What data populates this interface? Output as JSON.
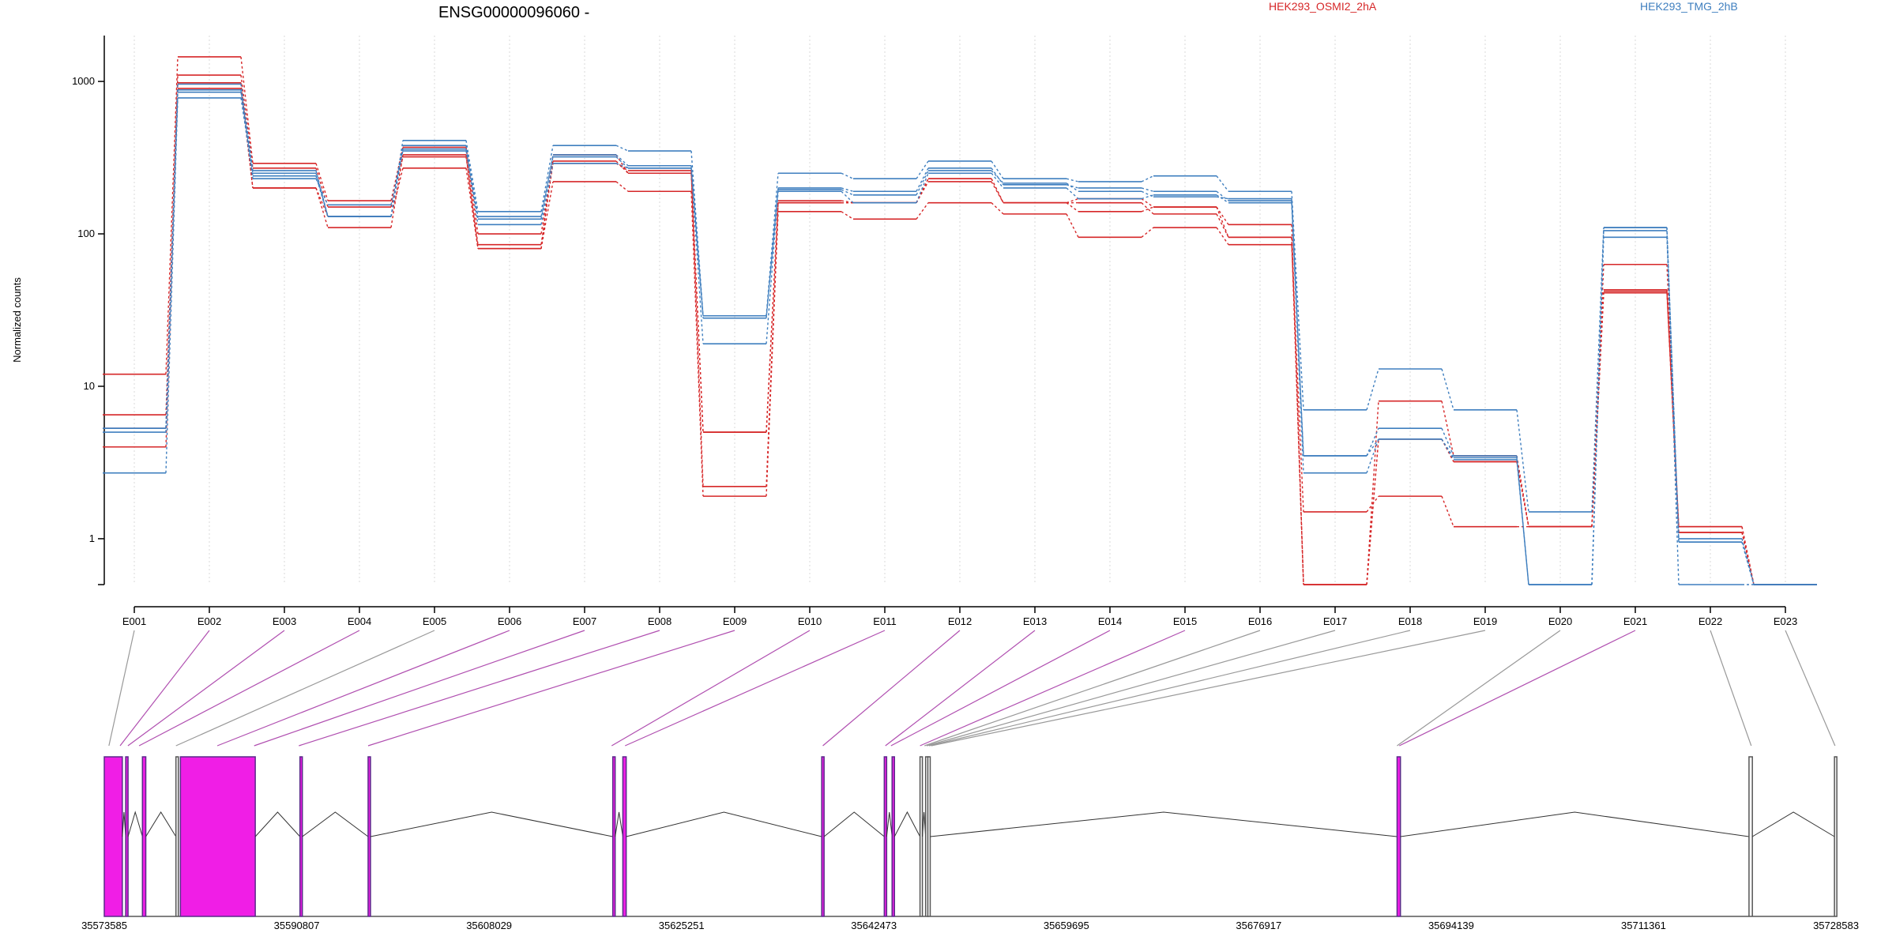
{
  "colors": {
    "osmi": "#d62728",
    "tmg": "#3f7fbf",
    "exon": "#f01ee6",
    "tested": "#b04fb0",
    "untested": "#999999"
  },
  "chart_data": {
    "type": "line",
    "title": "ENSG00000096060 -",
    "ylabel": "Normalized counts",
    "yscale": "log",
    "ylim": [
      0.5,
      2000
    ],
    "yticks": [
      1,
      10,
      100,
      1000
    ],
    "grid": "vertical",
    "legend_placement": "top-right",
    "legend": [
      "HEK293_OSMI2_2hA",
      "HEK293_TMG_2hB"
    ],
    "exons": [
      "E001",
      "E002",
      "E003",
      "E004",
      "E005",
      "E006",
      "E007",
      "E008",
      "E009",
      "E010",
      "E011",
      "E012",
      "E013",
      "E014",
      "E015",
      "E016",
      "E017",
      "E018",
      "E019",
      "E020",
      "E021",
      "E022",
      "E023"
    ],
    "series": [
      {
        "group": "osmi",
        "values": [
          12,
          1450,
          290,
          165,
          370,
          100,
          300,
          250,
          5,
          165,
          160,
          230,
          160,
          170,
          150,
          115,
          0.5,
          8,
          3.5,
          1.2,
          43,
          1.2,
          0.5
        ]
      },
      {
        "group": "osmi",
        "values": [
          6.5,
          1100,
          270,
          150,
          320,
          85,
          290,
          260,
          2.2,
          160,
          160,
          220,
          160,
          160,
          135,
          95,
          0.5,
          4.5,
          3.2,
          1.2,
          63,
          1.1,
          0.5
        ]
      },
      {
        "group": "osmi",
        "values": [
          4,
          980,
          200,
          130,
          270,
          80,
          220,
          190,
          1.9,
          140,
          125,
          160,
          135,
          95,
          110,
          85,
          1.5,
          1.9,
          1.2,
          1.2,
          41,
          1.1,
          0.5
        ]
      },
      {
        "group": "osmi",
        "values": [
          5.3,
          900,
          200,
          110,
          330,
          80,
          330,
          250,
          5,
          160,
          160,
          230,
          160,
          140,
          150,
          95,
          0.5,
          4.5,
          3.2,
          1.2,
          42,
          1.2,
          0.5
        ]
      },
      {
        "group": "tmg",
        "values": [
          5.3,
          960,
          260,
          130,
          410,
          140,
          380,
          350,
          29,
          250,
          230,
          300,
          230,
          220,
          240,
          190,
          7,
          13,
          7,
          1.5,
          110,
          1,
          0.5
        ]
      },
      {
        "group": "tmg",
        "values": [
          5,
          880,
          250,
          130,
          380,
          125,
          330,
          280,
          28,
          200,
          190,
          270,
          210,
          200,
          190,
          165,
          3.5,
          5.3,
          3.5,
          0.5,
          95,
          0.95,
          0.5
        ]
      },
      {
        "group": "tmg",
        "values": [
          2.7,
          780,
          240,
          130,
          360,
          115,
          290,
          270,
          19,
          190,
          160,
          250,
          200,
          170,
          180,
          160,
          2.7,
          4.5,
          3.4,
          0.5,
          110,
          0.5,
          0.5
        ]
      },
      {
        "group": "tmg",
        "values": [
          5.3,
          850,
          230,
          155,
          350,
          130,
          320,
          270,
          29,
          195,
          180,
          260,
          215,
          190,
          175,
          170,
          3.5,
          4.5,
          3.3,
          0.5,
          105,
          0.95,
          0.5
        ]
      }
    ],
    "xticks": [
      "35573585",
      "35590807",
      "35608029",
      "35625251",
      "35642473",
      "35659695",
      "35676917",
      "35694139",
      "35711361",
      "35728583"
    ],
    "xrange": [
      35573585,
      35728583
    ],
    "gene_model": [
      {
        "start": 35573585,
        "end": 35575200,
        "tested": true
      },
      {
        "start": 35575500,
        "end": 35575700,
        "tested": true
      },
      {
        "start": 35577000,
        "end": 35577300,
        "tested": true
      },
      {
        "start": 35580000,
        "end": 35580100,
        "tested": false
      },
      {
        "start": 35580400,
        "end": 35587100,
        "tested": true
      },
      {
        "start": 35591100,
        "end": 35591300,
        "tested": true
      },
      {
        "start": 35597200,
        "end": 35597400,
        "tested": true
      },
      {
        "start": 35619100,
        "end": 35619300,
        "tested": true
      },
      {
        "start": 35620000,
        "end": 35620300,
        "tested": true
      },
      {
        "start": 35637800,
        "end": 35638000,
        "tested": true
      },
      {
        "start": 35643400,
        "end": 35643600,
        "tested": true
      },
      {
        "start": 35644100,
        "end": 35644300,
        "tested": true
      },
      {
        "start": 35646600,
        "end": 35646700,
        "tested": false
      },
      {
        "start": 35647100,
        "end": 35647200,
        "tested": false
      },
      {
        "start": 35647300,
        "end": 35647400,
        "tested": false
      },
      {
        "start": 35689300,
        "end": 35689600,
        "tested": true
      },
      {
        "start": 35720800,
        "end": 35721100,
        "tested": false
      },
      {
        "start": 35728450,
        "end": 35728583,
        "tested": false
      }
    ],
    "exon_links": [
      {
        "exon": "E001",
        "coord": 35574000,
        "tested": false
      },
      {
        "exon": "E002",
        "coord": 35575000,
        "tested": true
      },
      {
        "exon": "E003",
        "coord": 35575700,
        "tested": true
      },
      {
        "exon": "E004",
        "coord": 35576700,
        "tested": true
      },
      {
        "exon": "E005",
        "coord": 35580000,
        "tested": false
      },
      {
        "exon": "E006",
        "coord": 35583700,
        "tested": true
      },
      {
        "exon": "E007",
        "coord": 35587000,
        "tested": true
      },
      {
        "exon": "E008",
        "coord": 35591000,
        "tested": true
      },
      {
        "exon": "E009",
        "coord": 35597200,
        "tested": true
      },
      {
        "exon": "E010",
        "coord": 35619000,
        "tested": true
      },
      {
        "exon": "E011",
        "coord": 35620200,
        "tested": true
      },
      {
        "exon": "E012",
        "coord": 35637900,
        "tested": true
      },
      {
        "exon": "E013",
        "coord": 35643500,
        "tested": true
      },
      {
        "exon": "E014",
        "coord": 35644000,
        "tested": true
      },
      {
        "exon": "E015",
        "coord": 35646600,
        "tested": true
      },
      {
        "exon": "E016",
        "coord": 35647000,
        "tested": false
      },
      {
        "exon": "E017",
        "coord": 35647200,
        "tested": false
      },
      {
        "exon": "E018",
        "coord": 35647400,
        "tested": false
      },
      {
        "exon": "E019",
        "coord": 35647600,
        "tested": false
      },
      {
        "exon": "E020",
        "coord": 35689300,
        "tested": false
      },
      {
        "exon": "E021",
        "coord": 35689500,
        "tested": true
      },
      {
        "exon": "E022",
        "coord": 35721000,
        "tested": false
      },
      {
        "exon": "E023",
        "coord": 35728500,
        "tested": false
      }
    ]
  }
}
